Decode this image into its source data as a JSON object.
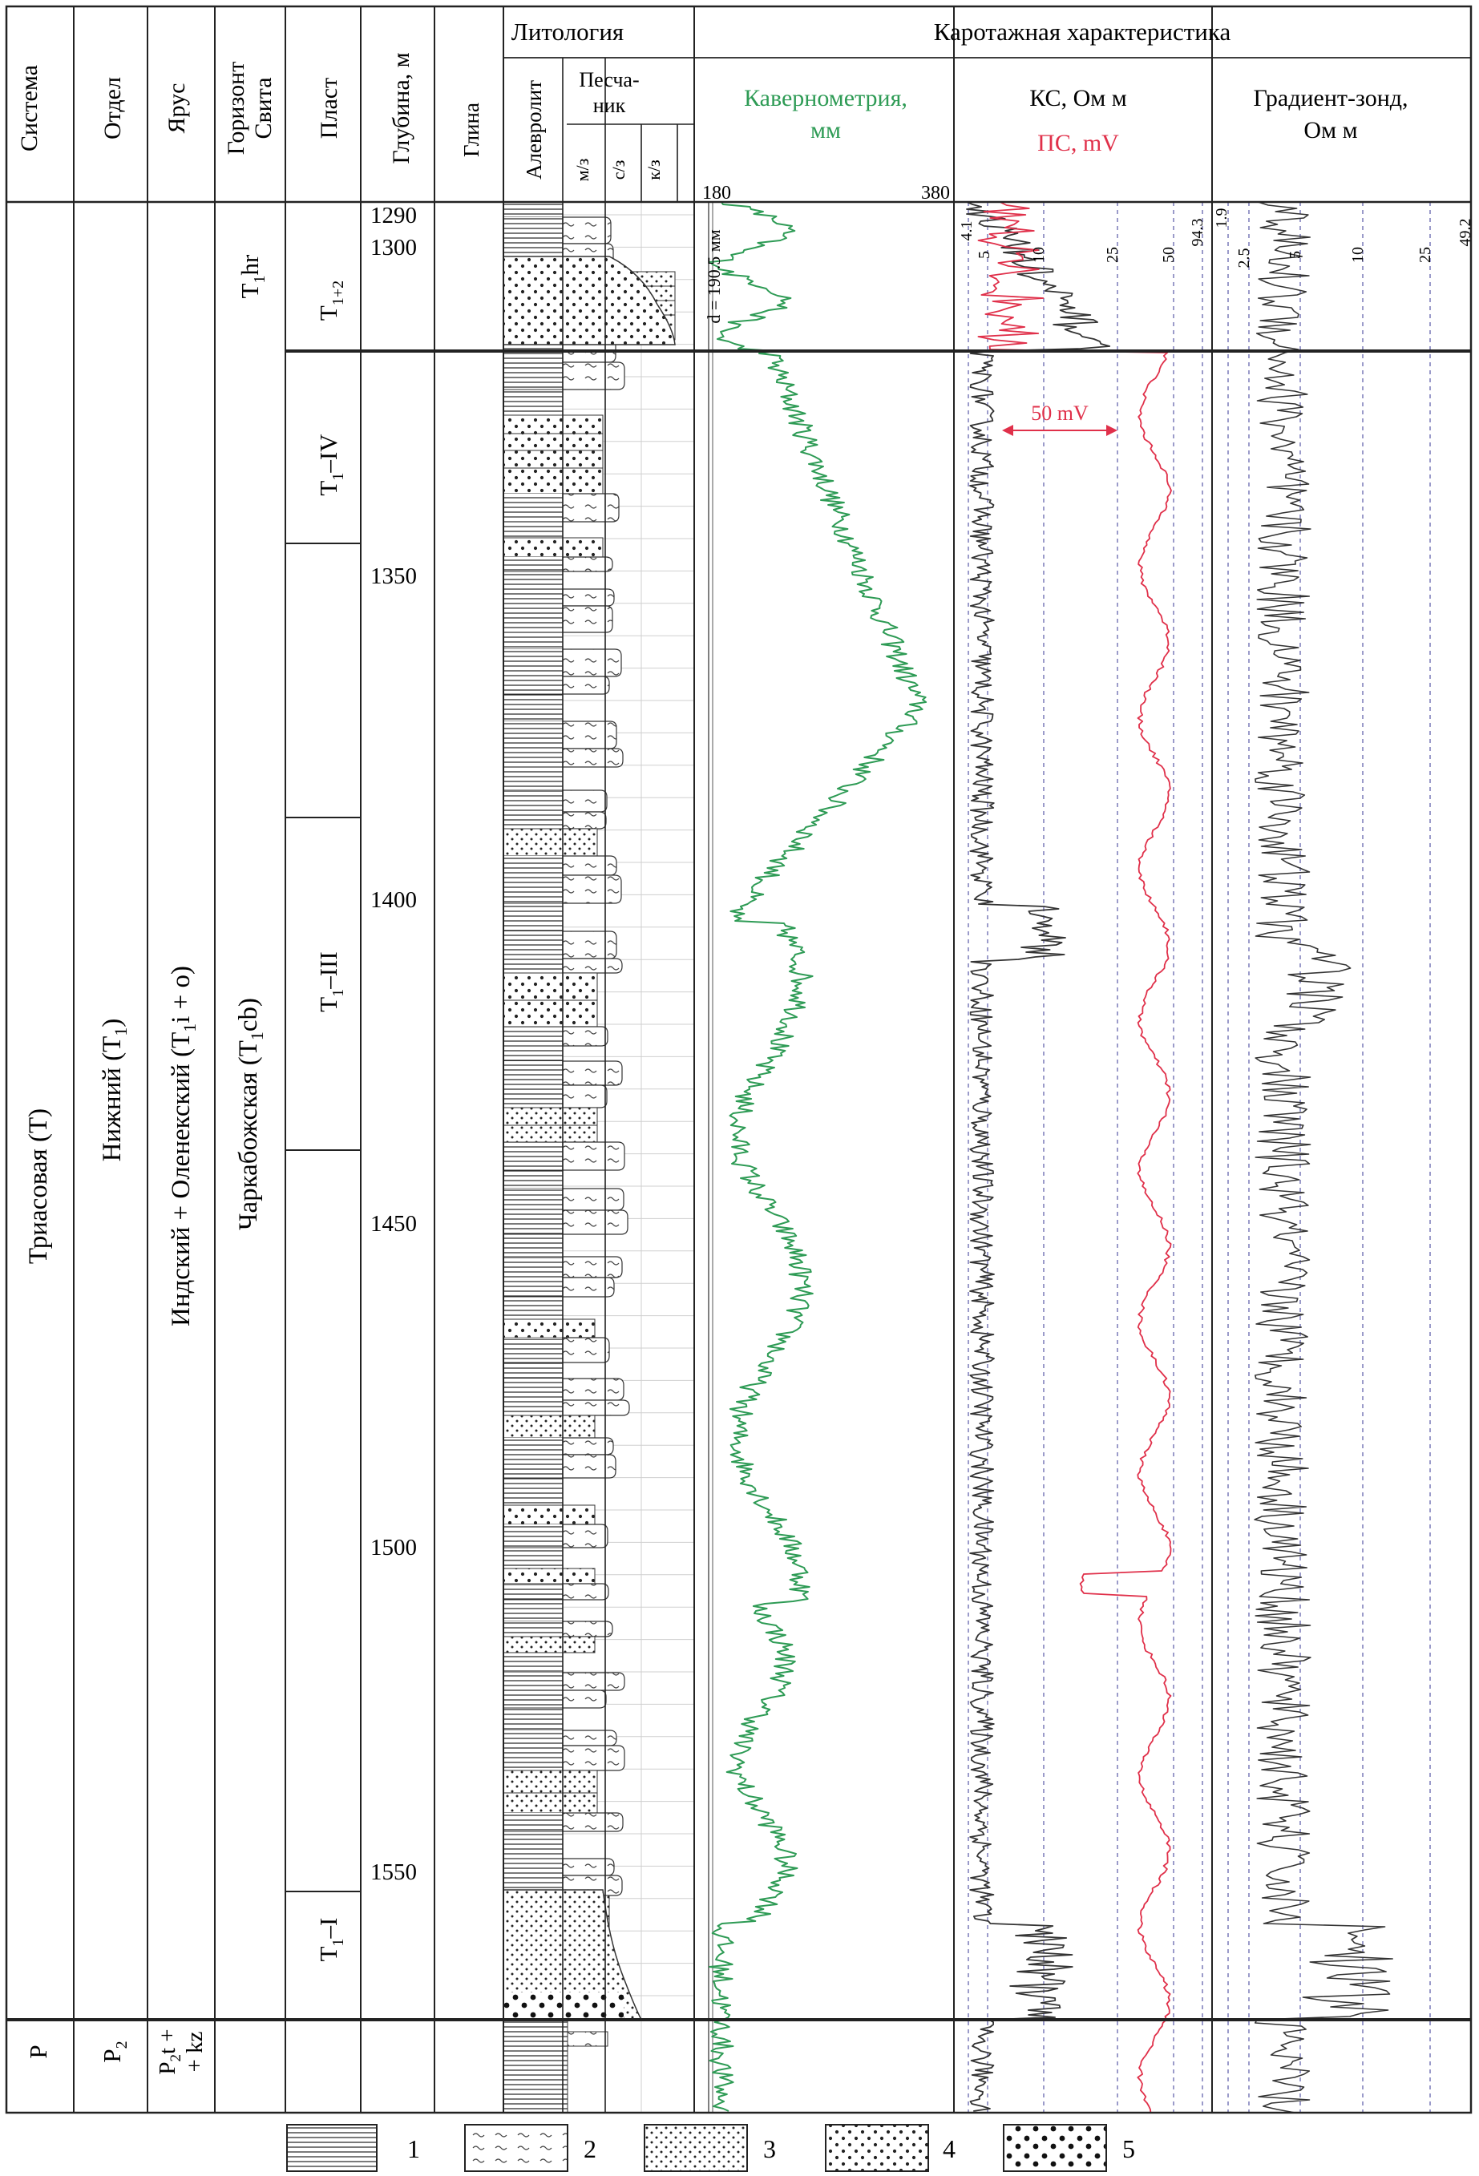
{
  "headers": {
    "system": "Система",
    "division": "Отдел",
    "stage": "Ярус",
    "horizon": "Горизонт",
    "suite": "Свита",
    "layer": "Пласт",
    "depth": "Глубина, м",
    "lithology": "Литология",
    "clay": "Глина",
    "siltstone": "Алевролит",
    "sandstone_1": "Песча-",
    "sandstone_2": "ник",
    "grain_fine": "м/з",
    "grain_medium": "с/з",
    "grain_coarse": "к/з",
    "logging": "Каротажная характеристика",
    "caliper": "Кавернометрия,",
    "caliper_unit": "мм",
    "resistivity": "КС, Ом м",
    "sp": "ПС, mV",
    "gradient_1": "Градиент-зонд,",
    "gradient_2": "Ом м"
  },
  "stratigraphy": {
    "system_triassic": "Триасовая (Т)",
    "division_lower": "Нижний (Т",
    "division_lower_sub": "1",
    "division_lower_end": ")",
    "stage_name": "Индский + Оленекский (Т",
    "stage_sub": "1",
    "stage_end": "i + o)",
    "horizon_a": "T",
    "horizon_sub": "1",
    "horizon_b": "hr",
    "suite_name": "Чаркабожская (Т",
    "suite_sub": "1",
    "suite_end": "cb)",
    "layer_top_a": "T",
    "layer_top_sub": "1+2",
    "layer_iv_a": "T",
    "layer_iv_sub": "1",
    "layer_iv_b": "–IV",
    "layer_iii_a": "T",
    "layer_iii_sub": "1",
    "layer_iii_b": "–III",
    "layer_i_a": "T",
    "layer_i_sub": "1",
    "layer_i_b": "–I",
    "system_p": "P",
    "division_p_a": "P",
    "division_p_sub": "2",
    "stage_p_line1_a": "P",
    "stage_p_line1_sub": "2",
    "stage_p_line1_b": "t +",
    "stage_p_line2": "+ kz"
  },
  "depth_labels": [
    "1290",
    "1300",
    "1350",
    "1400",
    "1450",
    "1500",
    "1550"
  ],
  "scales": {
    "caliper_min": "180",
    "caliper_max": "380",
    "bit_size": "d = 190.5 мм",
    "ks_ticks": [
      "4.1",
      "5",
      "10",
      "25",
      "50",
      "94.3"
    ],
    "gz_ticks": [
      "1.9",
      "2.5",
      "5",
      "10",
      "25",
      "49.2"
    ],
    "sp_scale": "50 mV"
  },
  "legend": [
    "1",
    "2",
    "3",
    "4",
    "5"
  ],
  "colors": {
    "caliper": "#2e9b55",
    "sp": "#e0304a",
    "log": "#333333",
    "grid": "#7a7ab8"
  }
}
